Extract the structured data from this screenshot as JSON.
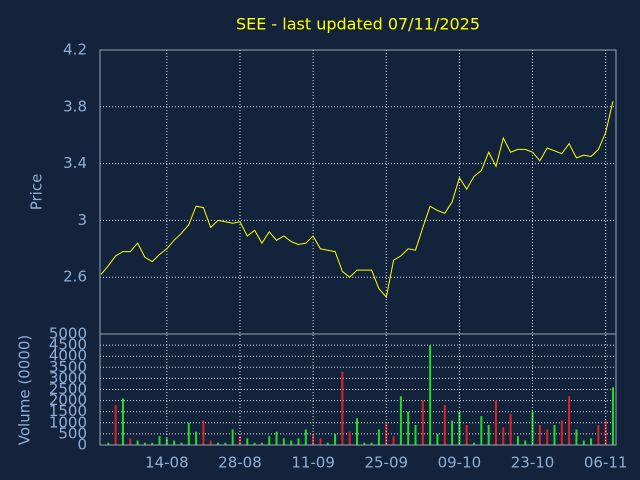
{
  "chart_data": [
    {
      "type": "line",
      "title": "SEE - last updated 07/11/2025",
      "ylabel": "Price",
      "color": "#ffff00",
      "values": [
        2.62,
        2.68,
        2.75,
        2.78,
        2.78,
        2.84,
        2.74,
        2.71,
        2.76,
        2.8,
        2.86,
        2.91,
        2.97,
        3.1,
        3.09,
        2.95,
        3.0,
        2.99,
        2.98,
        2.99,
        2.89,
        2.93,
        2.84,
        2.92,
        2.86,
        2.89,
        2.85,
        2.83,
        2.84,
        2.89,
        2.8,
        2.79,
        2.78,
        2.64,
        2.6,
        2.65,
        2.65,
        2.65,
        2.52,
        2.46,
        2.72,
        2.75,
        2.8,
        2.79,
        2.95,
        3.1,
        3.07,
        3.05,
        3.13,
        3.3,
        3.22,
        3.31,
        3.35,
        3.48,
        3.38,
        3.58,
        3.48,
        3.5,
        3.5,
        3.48,
        3.42,
        3.51,
        3.49,
        3.47,
        3.54,
        3.44,
        3.46,
        3.45,
        3.5,
        3.62,
        3.84
      ],
      "ylim": [
        2.2,
        4.2
      ],
      "yticks": [
        2.6,
        3,
        3.4,
        3.8,
        4.2
      ],
      "grid": true
    },
    {
      "type": "bar",
      "ylabel": "Volume (0000)",
      "categories": [
        null,
        null,
        null,
        null,
        null,
        null,
        null,
        null,
        null,
        "14-08",
        null,
        null,
        null,
        null,
        null,
        null,
        null,
        null,
        null,
        "28-08",
        null,
        null,
        null,
        null,
        null,
        null,
        null,
        null,
        null,
        "11-09",
        null,
        null,
        null,
        null,
        null,
        null,
        null,
        null,
        null,
        "25-09",
        null,
        null,
        null,
        null,
        null,
        null,
        null,
        null,
        null,
        "09-10",
        null,
        null,
        null,
        null,
        null,
        null,
        null,
        null,
        null,
        "23-10",
        null,
        null,
        null,
        null,
        null,
        null,
        null,
        null,
        null,
        "06-11",
        null
      ],
      "values": [
        0,
        100,
        1800,
        2100,
        300,
        200,
        100,
        100,
        400,
        300,
        200,
        100,
        1000,
        600,
        1100,
        200,
        100,
        100,
        700,
        400,
        300,
        100,
        100,
        400,
        600,
        300,
        200,
        300,
        700,
        500,
        300,
        100,
        500,
        3300,
        600,
        1200,
        100,
        100,
        700,
        1000,
        400,
        2200,
        1500,
        900,
        2000,
        4500,
        500,
        1800,
        1100,
        1500,
        900,
        100,
        1300,
        900,
        2000,
        800,
        1400,
        400,
        200,
        1500,
        900,
        700,
        900,
        1100,
        2200,
        700,
        200,
        300,
        900,
        1100,
        2600
      ],
      "colors": [
        "#22dd22",
        "#22dd22",
        "#dd2222",
        "#22dd22",
        "#dd2222",
        "#22dd22",
        "#22dd22",
        "#22dd22",
        "#22dd22",
        "#22dd22",
        "#22dd22",
        "#22dd22",
        "#22dd22",
        "#22dd22",
        "#dd2222",
        "#dd2222",
        "#22dd22",
        "#22dd22",
        "#22dd22",
        "#dd2222",
        "#22dd22",
        "#22dd22",
        "#22dd22",
        "#22dd22",
        "#22dd22",
        "#22dd22",
        "#22dd22",
        "#22dd22",
        "#22dd22",
        "#dd2222",
        "#dd2222",
        "#22dd22",
        "#22dd22",
        "#dd2222",
        "#dd2222",
        "#22dd22",
        "#22dd22",
        "#22dd22",
        "#22dd22",
        "#dd2222",
        "#dd2222",
        "#22dd22",
        "#22dd22",
        "#22dd22",
        "#dd2222",
        "#22dd22",
        "#22dd22",
        "#dd2222",
        "#22dd22",
        "#22dd22",
        "#dd2222",
        "#22dd22",
        "#22dd22",
        "#22dd22",
        "#dd2222",
        "#dd2222",
        "#dd2222",
        "#22dd22",
        "#22dd22",
        "#22dd22",
        "#dd2222",
        "#dd2222",
        "#22dd22",
        "#dd2222",
        "#dd2222",
        "#22dd22",
        "#22dd22",
        "#22dd22",
        "#dd2222",
        "#dd2222",
        "#22dd22"
      ],
      "ylim": [
        0,
        5000
      ],
      "yticks": [
        0,
        500,
        1000,
        1500,
        2000,
        2500,
        3000,
        3500,
        4000,
        4500,
        5000
      ],
      "grid": true
    }
  ]
}
